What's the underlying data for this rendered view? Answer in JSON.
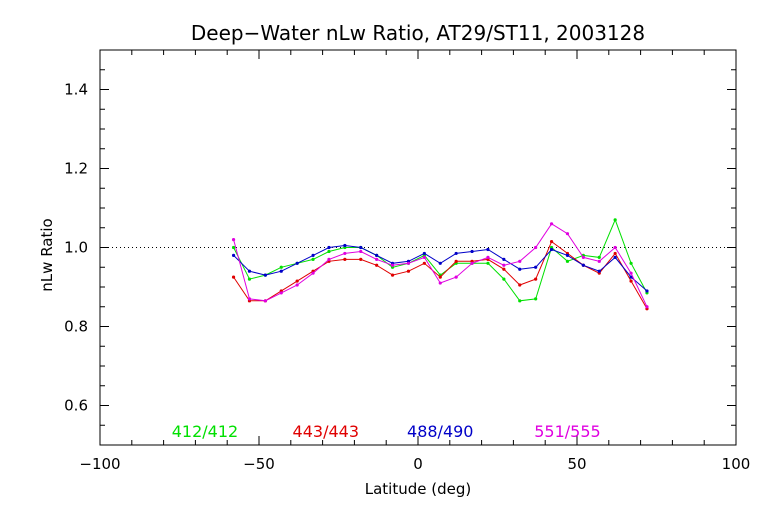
{
  "chart_data": {
    "type": "line",
    "title": "Deep−Water nLw Ratio, AT29/ST11, 2003128",
    "xlabel": "Latitude (deg)",
    "ylabel": "nLw Ratio",
    "xlim": [
      -100,
      100
    ],
    "ylim": [
      0.5,
      1.5
    ],
    "x_ticks": [
      -100,
      -50,
      0,
      50,
      100
    ],
    "x_tick_labels": [
      "−100",
      "−50",
      "0",
      "50",
      "100"
    ],
    "y_ticks": [
      0.6,
      0.8,
      1.0,
      1.2,
      1.4
    ],
    "y_tick_labels": [
      "0.6",
      "0.8",
      "1.0",
      "1.2",
      "1.4"
    ],
    "reference_line": 1.0,
    "grid": false,
    "legend_position": "bottom",
    "x": [
      -58,
      -53,
      -48,
      -43,
      -38,
      -33,
      -28,
      -23,
      -18,
      -13,
      -8,
      -3,
      2,
      7,
      12,
      17,
      22,
      27,
      32,
      37,
      42,
      47,
      52,
      57,
      62,
      67,
      72
    ],
    "series": [
      {
        "name": "412/412",
        "color": "#00e000",
        "values": [
          1.0,
          0.92,
          0.93,
          0.95,
          0.96,
          0.97,
          0.99,
          1.0,
          1.0,
          0.98,
          0.95,
          0.96,
          0.98,
          0.93,
          0.96,
          0.96,
          0.96,
          0.92,
          0.865,
          0.87,
          1.0,
          0.965,
          0.98,
          0.975,
          1.07,
          0.96,
          0.885
        ]
      },
      {
        "name": "443/443",
        "color": "#e00000",
        "values": [
          0.925,
          0.865,
          0.865,
          0.89,
          0.915,
          0.94,
          0.965,
          0.97,
          0.97,
          0.955,
          0.93,
          0.94,
          0.96,
          0.925,
          0.965,
          0.965,
          0.97,
          0.945,
          0.905,
          0.92,
          1.015,
          0.985,
          0.955,
          0.935,
          0.985,
          0.915,
          0.845
        ]
      },
      {
        "name": "488/490",
        "color": "#0000c8",
        "values": [
          0.98,
          0.94,
          0.93,
          0.94,
          0.96,
          0.98,
          1.0,
          1.005,
          1.0,
          0.98,
          0.96,
          0.965,
          0.985,
          0.96,
          0.985,
          0.99,
          0.995,
          0.97,
          0.945,
          0.95,
          0.995,
          0.98,
          0.955,
          0.94,
          0.975,
          0.925,
          0.89
        ]
      },
      {
        "name": "551/555",
        "color": "#e000e0",
        "values": [
          1.02,
          0.87,
          0.865,
          0.885,
          0.905,
          0.935,
          0.97,
          0.985,
          0.99,
          0.97,
          0.955,
          0.96,
          0.975,
          0.91,
          0.925,
          0.96,
          0.975,
          0.955,
          0.965,
          1.0,
          1.06,
          1.035,
          0.975,
          0.965,
          1.0,
          0.935,
          0.85
        ]
      }
    ]
  }
}
